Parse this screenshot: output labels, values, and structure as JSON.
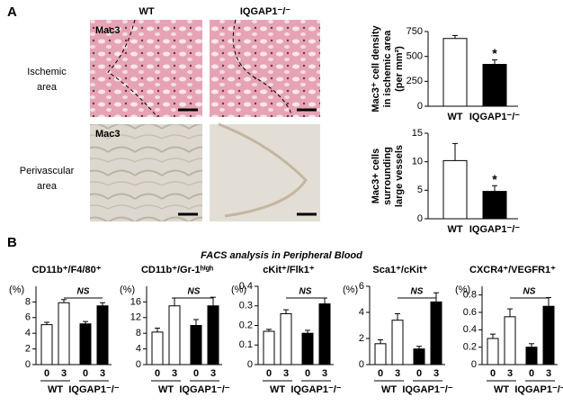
{
  "figure": {
    "panel_labels": [
      "A",
      "B"
    ],
    "column_labels": [
      "WT",
      "IQGAP1⁻/⁻"
    ],
    "row_labels": [
      [
        "Ischemic",
        "area"
      ],
      [
        "Perivascular",
        "area"
      ]
    ],
    "image_labels": [
      "Mac3",
      "Mac3"
    ],
    "panel_b_title": "FACS analysis in Peripheral Blood"
  },
  "chart_data": [
    {
      "type": "bar",
      "ylabel": [
        "Mac3⁺ cell density",
        "in ischemic area",
        "(per mm²)"
      ],
      "categories": [
        "WT",
        "IQGAP1⁻/⁻"
      ],
      "values": [
        680,
        420
      ],
      "errors": [
        30,
        45
      ],
      "colors": [
        "#ffffff",
        "#000000"
      ],
      "ylim": [
        0,
        750
      ],
      "yticks": [
        0,
        250,
        500,
        750
      ],
      "annotation": "*"
    },
    {
      "type": "bar",
      "ylabel": [
        "Mac3+ cells",
        "surrounding",
        "large vessels"
      ],
      "categories": [
        "WT",
        "IQGAP1⁻/⁻"
      ],
      "values": [
        10.2,
        4.8
      ],
      "errors": [
        3,
        1
      ],
      "colors": [
        "#ffffff",
        "#000000"
      ],
      "ylim": [
        0,
        15
      ],
      "yticks": [
        0,
        5,
        10,
        15
      ],
      "annotation": "*"
    },
    {
      "type": "bar",
      "title": "CD11b⁺/F4/80⁺",
      "yunit": "(%)",
      "categories": [
        "0",
        "3",
        "0",
        "3"
      ],
      "groups": [
        "WT",
        "IQGAP1⁻/⁻"
      ],
      "values": [
        5.1,
        7.9,
        5.2,
        7.5
      ],
      "errors": [
        0.3,
        0.4,
        0.3,
        0.4
      ],
      "colors": [
        "#ffffff",
        "#ffffff",
        "#000000",
        "#000000"
      ],
      "ylim": [
        0,
        10
      ],
      "yticks": [
        0,
        2,
        4,
        6,
        8
      ],
      "annotation": "NS"
    },
    {
      "type": "bar",
      "title": "CD11b⁺/Gr-1ʰⁱᵍʰ",
      "yunit": "(%)",
      "categories": [
        "0",
        "3",
        "0",
        "3"
      ],
      "groups": [
        "WT",
        "IQGAP1⁻/⁻"
      ],
      "values": [
        8.3,
        15,
        10,
        15
      ],
      "errors": [
        1,
        2,
        1.5,
        2.2
      ],
      "colors": [
        "#ffffff",
        "#ffffff",
        "#000000",
        "#000000"
      ],
      "ylim": [
        0,
        20
      ],
      "yticks": [
        0,
        4,
        8,
        12,
        16
      ],
      "annotation": "NS"
    },
    {
      "type": "bar",
      "title": "cKit⁺/Flk1⁺",
      "yunit": "(%)",
      "categories": [
        "0",
        "3",
        "0",
        "3"
      ],
      "groups": [
        "WT",
        "IQGAP1⁻/⁻"
      ],
      "values": [
        0.17,
        0.26,
        0.16,
        0.31
      ],
      "errors": [
        0.01,
        0.02,
        0.015,
        0.03
      ],
      "colors": [
        "#ffffff",
        "#ffffff",
        "#000000",
        "#000000"
      ],
      "ylim": [
        0,
        0.4
      ],
      "yticks": [
        0,
        0.1,
        0.2,
        0.3,
        0.4
      ],
      "annotation": "NS"
    },
    {
      "type": "bar",
      "title": "Sca1⁺/cKit⁺",
      "yunit": "(%)",
      "categories": [
        "0",
        "3",
        "0",
        "3"
      ],
      "groups": [
        "WT",
        "IQGAP1⁻/⁻"
      ],
      "values": [
        1.6,
        3.4,
        1.2,
        4.8
      ],
      "errors": [
        0.3,
        0.5,
        0.2,
        0.7
      ],
      "colors": [
        "#ffffff",
        "#ffffff",
        "#000000",
        "#000000"
      ],
      "ylim": [
        0,
        6
      ],
      "yticks": [
        0,
        2,
        4,
        6
      ],
      "annotation": "NS"
    },
    {
      "type": "bar",
      "title": "CXCR4⁺/VEGFR1⁺",
      "yunit": "(%)",
      "categories": [
        "0",
        "3",
        "0",
        "3"
      ],
      "groups": [
        "WT",
        "IQGAP1⁻/⁻"
      ],
      "values": [
        0.3,
        0.55,
        0.2,
        0.67
      ],
      "errors": [
        0.05,
        0.09,
        0.04,
        0.1
      ],
      "colors": [
        "#ffffff",
        "#ffffff",
        "#000000",
        "#000000"
      ],
      "ylim": [
        0,
        0.9
      ],
      "yticks": [
        0,
        0.2,
        0.4,
        0.6,
        0.8
      ],
      "annotation": "NS"
    }
  ]
}
